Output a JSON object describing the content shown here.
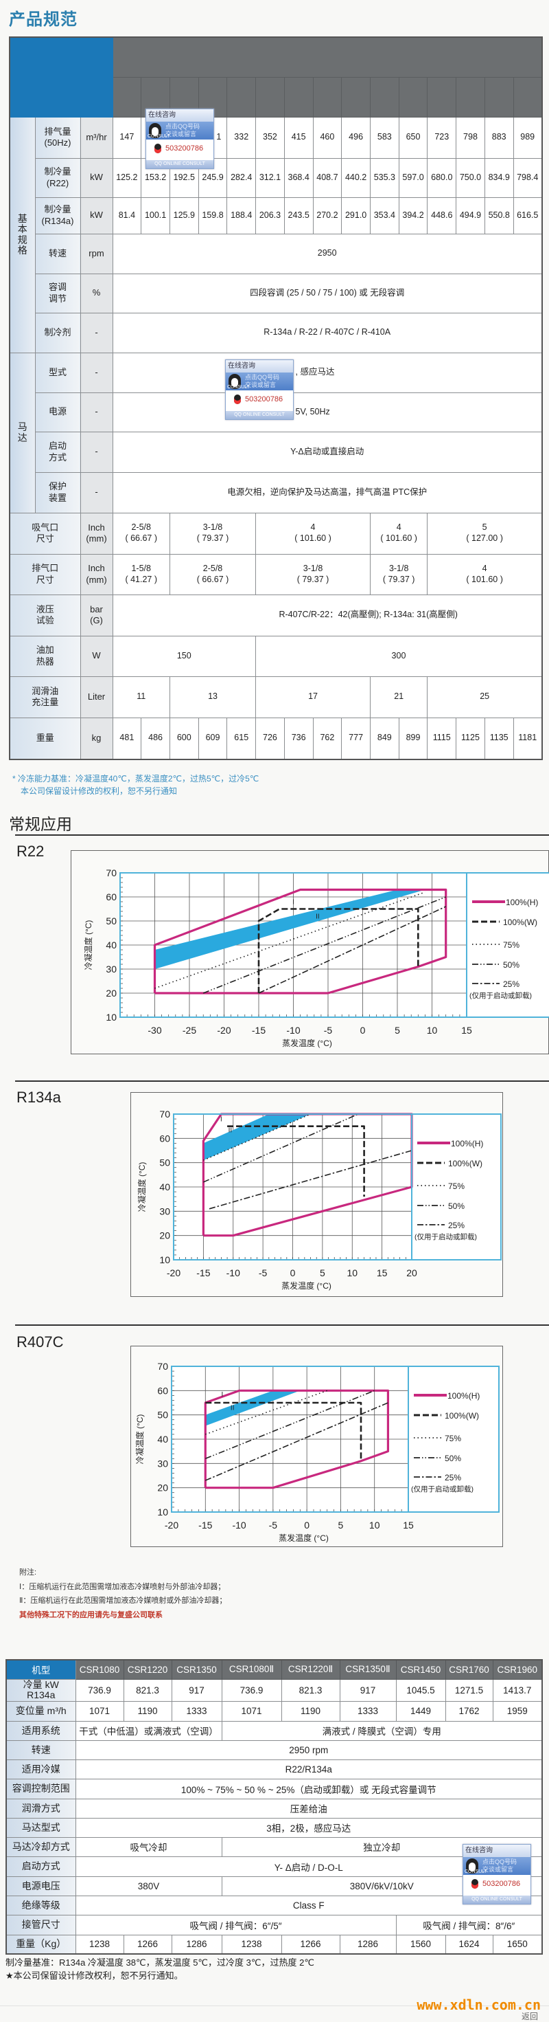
{
  "title": "产品规范",
  "spec_table": {
    "groups": [
      {
        "label": "基\n本\n规\n格",
        "start": 0,
        "count": 6
      },
      {
        "label": "马\n达",
        "start": 6,
        "count": 4
      }
    ],
    "rows": [
      {
        "name": "排气量\n(50Hz)",
        "unit": "m³/hr",
        "cells": [
          "147",
          "",
          "",
          "1",
          "332",
          "352",
          "415",
          "460",
          "496",
          "583",
          "650",
          "723",
          "798",
          "883",
          "989"
        ]
      },
      {
        "name": "制冷量\n(R22)",
        "unit": "kW",
        "cells": [
          "125.2",
          "153.2",
          "192.5",
          "245.9",
          "282.4",
          "312.1",
          "368.4",
          "408.7",
          "440.2",
          "535.3",
          "597.0",
          "680.0",
          "750.0",
          "834.9",
          "798.4"
        ]
      },
      {
        "name": "制冷量\n(R134a)",
        "unit": "kW",
        "cells": [
          "81.4",
          "100.1",
          "125.9",
          "159.8",
          "188.4",
          "206.3",
          "243.5",
          "270.2",
          "291.0",
          "353.4",
          "394.2",
          "448.6",
          "494.9",
          "550.8",
          "616.5"
        ]
      },
      {
        "name": "转速",
        "unit": "rpm",
        "cells": [
          {
            "t": "2950",
            "s": 15
          }
        ]
      },
      {
        "name": "容调\n调节",
        "unit": "%",
        "cells": [
          {
            "t": "四段容调 (25 / 50 / 75 / 100) 或 无段容调",
            "s": 15
          }
        ]
      },
      {
        "name": "制冷剂",
        "unit": "-",
        "cells": [
          {
            "t": "R-134a / R-22 / R-407C / R-410A",
            "s": 15
          }
        ]
      },
      {
        "name": "型式",
        "unit": "-",
        "cells": [
          {
            "t": ", 感应马达",
            "s": 15,
            "off": 1
          }
        ]
      },
      {
        "name": "电源",
        "unit": "-",
        "cells": [
          {
            "t": "5V, 50Hz",
            "s": 15,
            "off": 1
          }
        ]
      },
      {
        "name": "启动\n方式",
        "unit": "-",
        "cells": [
          {
            "t": "Y-Δ启动或直接启动",
            "s": 15
          }
        ]
      },
      {
        "name": "保护\n装置",
        "unit": "-",
        "cells": [
          {
            "t": "电源欠相，逆向保护及马达高温，排气高温 PTC保护",
            "s": 15
          }
        ]
      },
      {
        "name": "吸气口\n尺寸",
        "unit": "Inch\n(mm)",
        "wide": true,
        "cells": [
          {
            "t": "2-5/8\n( 66.67 )",
            "s": 2
          },
          {
            "t": "3-1/8\n( 79.37 )",
            "s": 3
          },
          {
            "t": "4\n( 101.60 )",
            "s": 4
          },
          {
            "t": "4\n( 101.60 )",
            "s": 2
          },
          {
            "t": "5\n( 127.00 )",
            "s": 4
          }
        ]
      },
      {
        "name": "排气口\n尺寸",
        "unit": "Inch\n(mm)",
        "wide": true,
        "cells": [
          {
            "t": "1-5/8\n( 41.27 )",
            "s": 2
          },
          {
            "t": "2-5/8\n( 66.67 )",
            "s": 3
          },
          {
            "t": "3-1/8\n( 79.37 )",
            "s": 4
          },
          {
            "t": "3-1/8\n( 79.37 )",
            "s": 2
          },
          {
            "t": "4\n( 101.60 )",
            "s": 4
          }
        ]
      },
      {
        "name": "液压\n试验",
        "unit": "bar\n(G)",
        "wide": true,
        "cells": [
          {
            "t": "R-407C/R-22：42(高壓側); R-134a: 31(高壓側)",
            "s": 15,
            "off": 2
          }
        ]
      },
      {
        "name": "油加\n热器",
        "unit": "W",
        "wide": true,
        "cells": [
          {
            "t": "150",
            "s": 5
          },
          {
            "t": "300",
            "s": 10
          }
        ]
      },
      {
        "name": "润滑油\n充注量",
        "unit": "Liter",
        "wide": true,
        "cells": [
          {
            "t": "11",
            "s": 2
          },
          {
            "t": "13",
            "s": 3
          },
          {
            "t": "17",
            "s": 4
          },
          {
            "t": "21",
            "s": 2
          },
          {
            "t": "25",
            "s": 4
          }
        ]
      },
      {
        "name": "重量",
        "unit": "kg",
        "wide": true,
        "cells": [
          "481",
          "486",
          "600",
          "609",
          "615",
          "726",
          "736",
          "762",
          "777",
          "849",
          "899",
          "1115",
          "1125",
          "1135",
          "1181"
        ]
      }
    ]
  },
  "spec_notes": [
    "* 冷冻能力基准：冷凝温度40℃，蒸发温度2℃，过热5℃，过冷5℃",
    "本公司保留设计修改的权利，恕不另行通知"
  ],
  "applications_title": "常规应用",
  "chart_data": [
    {
      "type": "line",
      "title": "R22",
      "xlabel": "蒸发温度 (°C)",
      "ylabel": "冷凝温度 (°C)",
      "xlim": [
        -35,
        15
      ],
      "ylim": [
        10,
        70
      ],
      "xticks": [
        -30,
        -25,
        -20,
        -15,
        -10,
        -5,
        0,
        5,
        10,
        15
      ],
      "yticks": [
        10,
        20,
        30,
        40,
        50,
        60,
        70
      ],
      "grid": true,
      "legend": "right",
      "band": {
        "name": "blue-region",
        "color": "#2aa9de",
        "points": [
          [
            -30,
            38
          ],
          [
            5,
            63
          ],
          [
            9,
            63
          ],
          [
            -30,
            30
          ]
        ]
      },
      "regions": [
        {
          "label": "I",
          "x": -10,
          "y": 57
        },
        {
          "label": "II",
          "x": -6.5,
          "y": 51
        }
      ],
      "series": [
        {
          "name": "100%(H)",
          "style": "solid",
          "color": "#c8287e",
          "points": [
            [
              -30,
              20
            ],
            [
              -30,
              40
            ],
            [
              -9,
              63
            ],
            [
              12,
              63
            ],
            [
              12,
              35
            ],
            [
              8,
              31
            ],
            [
              -5,
              20
            ],
            [
              -30,
              20
            ]
          ]
        },
        {
          "name": "100%(W)",
          "style": "dashed",
          "color": "#222222",
          "points": [
            [
              -15,
              20
            ],
            [
              -15,
              50
            ],
            [
              -12,
              55
            ],
            [
              8,
              55
            ],
            [
              8,
              31
            ]
          ]
        },
        {
          "name": "75%",
          "style": "dotted",
          "color": "#222222",
          "points": [
            [
              -30,
              22
            ],
            [
              9,
              62
            ]
          ]
        },
        {
          "name": "50%",
          "style": "dashdotdot",
          "color": "#222222",
          "points": [
            [
              -23,
              20
            ],
            [
              12,
              60
            ]
          ]
        },
        {
          "name": "25%",
          "style": "dashdot",
          "color": "#222222",
          "points": [
            [
              -15,
              20
            ],
            [
              12,
              56
            ]
          ]
        }
      ],
      "legend_note": "(仅用于启动或卸载)"
    },
    {
      "type": "line",
      "title": "R134a",
      "xlabel": "蒸发温度 (°C)",
      "ylabel": "冷凝温度 (°C)",
      "xlim": [
        -20,
        20
      ],
      "ylim": [
        10,
        70
      ],
      "xticks": [
        -20,
        -15,
        -10,
        -5,
        0,
        5,
        10,
        15,
        20
      ],
      "yticks": [
        10,
        20,
        30,
        40,
        50,
        60,
        70
      ],
      "grid": true,
      "legend": "right",
      "band": {
        "name": "blue-region",
        "color": "#2aa9de",
        "points": [
          [
            -15,
            58
          ],
          [
            -4,
            70
          ],
          [
            3,
            70
          ],
          [
            -15,
            51
          ]
        ]
      },
      "regions": [
        {
          "label": "I",
          "x": -12,
          "y": 67
        },
        {
          "label": "II",
          "x": -10.5,
          "y": 62.5
        }
      ],
      "series": [
        {
          "name": "100%(H)",
          "style": "solid",
          "color": "#c8287e",
          "points": [
            [
              -15,
              20
            ],
            [
              -15,
              59
            ],
            [
              -12,
              70
            ],
            [
              20,
              70
            ],
            [
              20,
              40
            ],
            [
              -10,
              20
            ],
            [
              -15,
              20
            ]
          ]
        },
        {
          "name": "100%(W)",
          "style": "dashed",
          "color": "#222222",
          "points": [
            [
              -11,
              65
            ],
            [
              12,
              65
            ],
            [
              12,
              36
            ]
          ]
        },
        {
          "name": "75%",
          "style": "dotted",
          "color": "#222222",
          "points": [
            [
              -15,
              51
            ],
            [
              3,
              70
            ]
          ]
        },
        {
          "name": "50%",
          "style": "dashdotdot",
          "color": "#222222",
          "points": [
            [
              -15,
              42
            ],
            [
              11,
              70
            ]
          ]
        },
        {
          "name": "25%",
          "style": "dashdot",
          "color": "#222222",
          "points": [
            [
              -14,
              31
            ],
            [
              20,
              55
            ]
          ]
        }
      ],
      "legend_note": "(仅用于启动或卸载)"
    },
    {
      "type": "line",
      "title": "R407C",
      "xlabel": "蒸发温度 (°C)",
      "ylabel": "冷凝温度 (°C)",
      "xlim": [
        -20,
        15
      ],
      "ylim": [
        10,
        70
      ],
      "xticks": [
        -20,
        -15,
        -10,
        -5,
        0,
        5,
        10,
        15
      ],
      "yticks": [
        10,
        20,
        30,
        40,
        50,
        60,
        70
      ],
      "grid": true,
      "legend": "right",
      "band": {
        "name": "blue-region",
        "color": "#2aa9de",
        "points": [
          [
            -15,
            50
          ],
          [
            -5,
            60
          ],
          [
            -1,
            60
          ],
          [
            -15,
            45.5
          ]
        ]
      },
      "regions": [
        {
          "label": "I",
          "x": -12.5,
          "y": 57.5
        },
        {
          "label": "II",
          "x": -11,
          "y": 52
        }
      ],
      "series": [
        {
          "name": "100%(H)",
          "style": "solid",
          "color": "#c8287e",
          "points": [
            [
              -15,
              20
            ],
            [
              -15,
              55
            ],
            [
              -10,
              60
            ],
            [
              12,
              60
            ],
            [
              12,
              35
            ],
            [
              8,
              31
            ],
            [
              -5,
              20
            ],
            [
              -15,
              20
            ]
          ]
        },
        {
          "name": "100%(W)",
          "style": "dashed",
          "color": "#222222",
          "points": [
            [
              -15,
              55
            ],
            [
              8,
              55
            ],
            [
              8,
              31
            ]
          ]
        },
        {
          "name": "75%",
          "style": "dotted",
          "color": "#222222",
          "points": [
            [
              -15,
              42
            ],
            [
              3,
              60
            ]
          ]
        },
        {
          "name": "50%",
          "style": "dashdotdot",
          "color": "#222222",
          "points": [
            [
              -15,
              32
            ],
            [
              10,
              60
            ]
          ]
        },
        {
          "name": "25%",
          "style": "dashdot",
          "color": "#222222",
          "points": [
            [
              -15,
              23
            ],
            [
              12,
              55
            ]
          ]
        }
      ],
      "legend_note": "(仅用于启动或卸载)"
    }
  ],
  "chart_footnotes": {
    "heading": "附注:",
    "items": [
      "Ⅰ：压缩机运行在此范围需增加液态冷媒喷射与外部油冷却器；",
      "Ⅱ：压缩机运行在此范围需增加液态冷媒喷射或外部油冷却器；"
    ],
    "contact": "其他特殊工况下的应用请先与复盛公司联系",
    "contact_color": "#c0392b"
  },
  "model_table": {
    "headers": [
      "机型",
      "CSR1080",
      "CSR1220",
      "CSR1350",
      "CSR1080Ⅱ",
      "CSR1220Ⅱ",
      "CSR1350Ⅱ",
      "CSR1450",
      "CSR1760",
      "CSR1960"
    ],
    "rows": [
      {
        "name": "冷量 kW\nR134a",
        "cells": [
          "736.9",
          "821.3",
          "917",
          "736.9",
          "821.3",
          "917",
          "1045.5",
          "1271.5",
          "1413.7"
        ]
      },
      {
        "name": "变位量 m³/h",
        "cells": [
          "1071",
          "1190",
          "1333",
          "1071",
          "1190",
          "1333",
          "1449",
          "1762",
          "1959"
        ]
      },
      {
        "name": "适用系统",
        "cells": [
          {
            "t": "干式（中低温）或满液式（空调）",
            "s": 3
          },
          {
            "t": "满液式 / 降膜式（空调）专用",
            "s": 6
          }
        ]
      },
      {
        "name": "转速",
        "cells": [
          {
            "t": "2950 rpm",
            "s": 9
          }
        ]
      },
      {
        "name": "适用冷媒",
        "cells": [
          {
            "t": "R22/R134a",
            "s": 9
          }
        ]
      },
      {
        "name": "容调控制范围",
        "cells": [
          {
            "t": "100% ~ 75% ~ 50 % ~ 25%（启动或卸载）或 无段式容量调节",
            "s": 9
          }
        ]
      },
      {
        "name": "润滑方式",
        "cells": [
          {
            "t": "压差给油",
            "s": 9
          }
        ]
      },
      {
        "name": "马达型式",
        "cells": [
          {
            "t": "3相，2极，感应马达",
            "s": 9
          }
        ]
      },
      {
        "name": "马达冷却方式",
        "cells": [
          {
            "t": "吸气冷却",
            "s": 3
          },
          {
            "t": "独立冷却",
            "s": 6
          }
        ]
      },
      {
        "name": "启动方式",
        "cells": [
          {
            "t": "Y- Δ启动 / D-O-L",
            "s": 9
          }
        ]
      },
      {
        "name": "电源电压",
        "cells": [
          {
            "t": "380V",
            "s": 3
          },
          {
            "t": "380V/6kV/10kV",
            "s": 6
          }
        ]
      },
      {
        "name": "绝缘等级",
        "cells": [
          {
            "t": "Class F",
            "s": 9
          }
        ]
      },
      {
        "name": "接管尺寸",
        "cells": [
          {
            "t": "吸气阀 / 排气阀：6″/5″",
            "s": 6
          },
          {
            "t": "吸气阀 / 排气阀：8″/6″",
            "s": 3
          }
        ]
      },
      {
        "name": "重量（Kg）",
        "cells": [
          "1238",
          "1266",
          "1286",
          "1238",
          "1266",
          "1286",
          "1560",
          "1624",
          "1650"
        ]
      }
    ]
  },
  "model_notes": [
    "制冷量基准：R134a  冷凝温度 38℃，蒸发温度 5℃，过冷度 3℃，过热度 2℃",
    "★本公司保留设计修改权利，恕不另行通知。"
  ],
  "qq_widget": {
    "title": "在线咨询",
    "banner": "点击QQ号码\n交谈或留言",
    "badge": "CONSULT",
    "number": "503200786",
    "footer": "QQ ONLINE CONSULT"
  },
  "footer": {
    "site": "www.xdln.com.cn",
    "back": "返回",
    "site_color": "#f08a00"
  }
}
